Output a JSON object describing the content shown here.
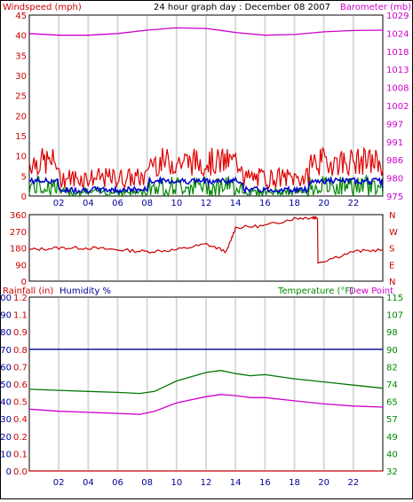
{
  "chart_data": [
    {
      "type": "line",
      "title": "24 hour graph day : December 08 2007",
      "ylabel_left": "Windspeed (mph)",
      "ylabel_right": "Barometer (mb)",
      "x_ticks": [
        "02",
        "04",
        "06",
        "08",
        "10",
        "12",
        "14",
        "16",
        "18",
        "20",
        "22"
      ],
      "y_left_ticks": [
        "45",
        "40",
        "35",
        "30",
        "25",
        "20",
        "15",
        "10",
        "5",
        "0"
      ],
      "y_left_range": [
        0,
        45
      ],
      "y_right_ticks": [
        "1029",
        "1024",
        "1018",
        "1013",
        "1008",
        "1002",
        "997",
        "991",
        "986",
        "980",
        "975"
      ],
      "y_right_range": [
        975,
        1029
      ],
      "grid": "vertical",
      "colors": {
        "gust": "#dd0000",
        "average": "#0000cc",
        "wind": "#008800",
        "barometer": "#cc00cc",
        "left_labels": "#cc0000",
        "right_labels": "#cc00cc"
      },
      "series": [
        {
          "name": "Barometer (mb)",
          "axis": "right",
          "x": [
            0,
            2,
            4,
            6,
            8,
            10,
            12,
            14,
            16,
            18,
            20,
            22,
            24
          ],
          "values": [
            1023.5,
            1023,
            1023,
            1023.5,
            1024.5,
            1025.2,
            1025,
            1023.8,
            1023,
            1023.2,
            1024,
            1024.4,
            1024.5
          ]
        }
      ]
    },
    {
      "type": "line",
      "ylabel_right": "N W S E N",
      "y_left_ticks": [
        "360",
        "270",
        "180",
        "90",
        "0"
      ],
      "y_left_range": [
        0,
        360
      ],
      "y_right_ticks": [
        "N",
        "W",
        "S",
        "E",
        "N"
      ],
      "grid": "vertical",
      "colors": {
        "direction": "#cc0000"
      },
      "series": [
        {
          "name": "",
          "x": [
            0,
            2,
            4,
            6,
            8,
            10,
            12,
            13.4,
            14,
            16,
            18,
            19.2,
            19.6,
            22,
            24
          ],
          "values": [
            170,
            180,
            180,
            170,
            160,
            170,
            200,
            160,
            290,
            300,
            340,
            345,
            100,
            160,
            170
          ]
        }
      ]
    },
    {
      "type": "line",
      "ylabel_left": "Rainfall (in)",
      "ylabel_left2": "Humidity %",
      "ylabel_right": "Temperature (°F)",
      "ylabel_right2": "Dew Point",
      "x_ticks": [
        "02",
        "04",
        "06",
        "08",
        "10",
        "12",
        "14",
        "16",
        "18",
        "20",
        "22"
      ],
      "y_left_ticks": [
        "100",
        "90",
        "80",
        "70",
        "60",
        "50",
        "40",
        "30",
        "20",
        "10",
        "0"
      ],
      "y_left_range": [
        0,
        100
      ],
      "y_rain_ticks": [
        "1.2",
        "1.1",
        "0.9",
        "0.8",
        "0.7",
        "0.6",
        "0.5",
        "0.4",
        "0.2",
        "0.1",
        "0.0"
      ],
      "y_right_ticks": [
        "115",
        "107",
        "98",
        "90",
        "82",
        "74",
        "65",
        "57",
        "49",
        "40",
        "32"
      ],
      "y_right_range": [
        32,
        115
      ],
      "grid": "vertical",
      "colors": {
        "humidity": "#000099",
        "temperature": "#007700",
        "dewpoint": "#cc00cc",
        "rainfall": "#cc0000",
        "left_labels": "#000099",
        "right_labels": "#008800"
      },
      "series": [
        {
          "name": "Humidity %",
          "axis": "left",
          "x": [
            0,
            24
          ],
          "values": [
            70,
            70
          ]
        },
        {
          "name": "Rainfall (in)",
          "axis": "left",
          "x": [
            0,
            24
          ],
          "values": [
            0,
            0
          ]
        },
        {
          "name": "Temperature (°F)",
          "axis": "right",
          "x": [
            0,
            2,
            4,
            6,
            7.5,
            8.5,
            10,
            12,
            13,
            14,
            15,
            16,
            18,
            20,
            22,
            24
          ],
          "values": [
            71,
            70.5,
            70,
            69.5,
            69,
            70,
            75,
            79,
            80,
            78.5,
            77.5,
            78,
            76,
            74.5,
            73,
            71.5
          ]
        },
        {
          "name": "Dew Point",
          "axis": "right",
          "x": [
            0,
            2,
            4,
            6,
            7.5,
            8.5,
            10,
            12,
            13,
            14,
            15,
            16,
            18,
            20,
            22,
            24
          ],
          "values": [
            61.5,
            60.5,
            60,
            59.5,
            59,
            60.5,
            64.5,
            67.5,
            68.5,
            68,
            67,
            67,
            65.5,
            64,
            63,
            62.5
          ]
        }
      ]
    }
  ]
}
